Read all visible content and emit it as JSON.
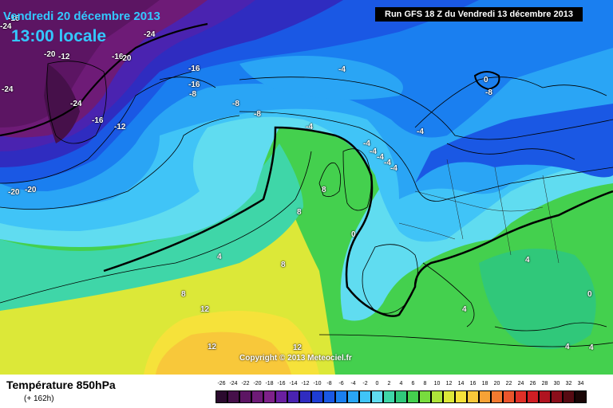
{
  "header": {
    "date": "Vendredi 20 décembre 2013",
    "time": "13:00 locale",
    "run": "Run GFS 18 Z du Vendredi 13 décembre 2013"
  },
  "footer": {
    "title": "Température 850hPa",
    "subtitle": "(+ 162h)",
    "copyright": "Copyright © 2013 Meteociel.fr"
  },
  "legend": {
    "labels": [
      "-26",
      "-24",
      "-22",
      "-20",
      "-18",
      "-16",
      "-14",
      "-12",
      "-10",
      "-8",
      "-6",
      "-4",
      "-2",
      "0",
      "2",
      "4",
      "6",
      "8",
      "10",
      "12",
      "14",
      "16",
      "18",
      "20",
      "22",
      "24",
      "26",
      "28",
      "30",
      "32",
      "34"
    ],
    "colors": [
      "#2b0a2e",
      "#46104a",
      "#5c1563",
      "#6e1b77",
      "#7e2189",
      "#6a1fa0",
      "#4a23b0",
      "#2f2cc0",
      "#1f3dd4",
      "#1a58e4",
      "#1a7ff0",
      "#2aa5f5",
      "#40c4f7",
      "#60dcf0",
      "#3fd6a8",
      "#30c87a",
      "#44d04e",
      "#78dc3e",
      "#aee43a",
      "#dce838",
      "#f6e23a",
      "#f8c83a",
      "#f6a236",
      "#f27a30",
      "#ea552c",
      "#e03028",
      "#d01e24",
      "#b01420",
      "#8a0e1a",
      "#560a12",
      "#1a0606"
    ]
  },
  "map_labels": [
    {
      "text": "-16"
    },
    {
      "text": "-24"
    },
    {
      "text": "-20"
    },
    {
      "text": "-16"
    },
    {
      "text": "-24"
    },
    {
      "text": "-20"
    },
    {
      "text": "-16"
    },
    {
      "text": "-16"
    },
    {
      "text": "-8"
    },
    {
      "text": "-12"
    },
    {
      "text": "-16"
    },
    {
      "text": "-24"
    },
    {
      "text": "-20"
    },
    {
      "text": "-20"
    },
    {
      "text": "-8"
    },
    {
      "text": "-8"
    },
    {
      "text": "-4"
    },
    {
      "text": "-4"
    },
    {
      "text": "0"
    },
    {
      "text": "-8"
    },
    {
      "text": "-4"
    },
    {
      "text": "-4"
    },
    {
      "text": "-4"
    },
    {
      "text": "-4"
    },
    {
      "text": "-4"
    },
    {
      "text": "-4"
    },
    {
      "text": "8"
    },
    {
      "text": "8"
    },
    {
      "text": "0"
    },
    {
      "text": "4"
    },
    {
      "text": "8"
    },
    {
      "text": "8"
    },
    {
      "text": "12"
    },
    {
      "text": "12"
    },
    {
      "text": "12"
    },
    {
      "text": "4"
    },
    {
      "text": "4"
    },
    {
      "text": "0"
    },
    {
      "text": "4"
    },
    {
      "text": "4"
    },
    {
      "text": "-12"
    },
    {
      "text": "-24"
    }
  ]
}
